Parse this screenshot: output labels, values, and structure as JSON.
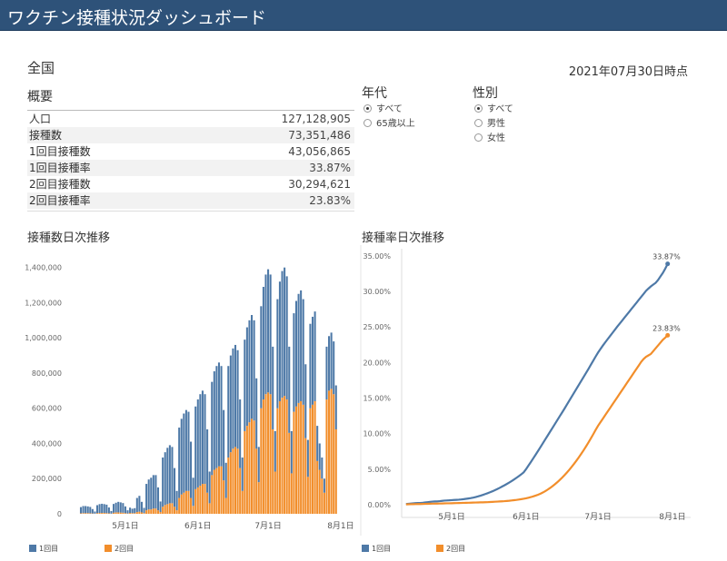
{
  "header": {
    "title": "ワクチン接種状況ダッシュボード"
  },
  "region": "全国",
  "as_of": "2021年07月30日時点",
  "summary": {
    "title": "概要",
    "rows": [
      [
        "人口",
        "127,128,905"
      ],
      [
        "接種数",
        "73,351,486"
      ],
      [
        "1回目接種数",
        "43,056,865"
      ],
      [
        "1回目接種率",
        "33.87%"
      ],
      [
        "2回目接種数",
        "30,294,621"
      ],
      [
        "2回目接種率",
        "23.83%"
      ]
    ]
  },
  "filters": [
    {
      "title": "年代",
      "options": [
        "すべて",
        "65歳以上"
      ]
    },
    {
      "title": "性別",
      "options": [
        "すべて",
        "男性",
        "女性"
      ]
    }
  ],
  "chart_data": [
    {
      "type": "bar",
      "title": "接種数日次推移",
      "stacked": true,
      "grid": false,
      "categories": [
        null,
        null,
        null,
        null,
        null,
        null,
        null,
        null,
        null,
        null,
        null,
        null,
        null,
        null,
        null,
        null,
        null,
        null,
        null,
        "5月1日",
        null,
        null,
        null,
        null,
        null,
        null,
        null,
        null,
        null,
        null,
        null,
        null,
        null,
        null,
        null,
        null,
        null,
        null,
        null,
        null,
        null,
        null,
        null,
        null,
        null,
        null,
        null,
        null,
        null,
        null,
        "6月1日",
        null,
        null,
        null,
        null,
        null,
        null,
        null,
        null,
        null,
        null,
        null,
        null,
        null,
        null,
        null,
        null,
        null,
        null,
        null,
        null,
        null,
        null,
        null,
        null,
        null,
        null,
        null,
        null,
        null,
        "7月1日",
        null,
        null,
        null,
        null,
        null,
        null,
        null,
        null,
        null,
        null,
        null,
        null,
        null,
        null,
        null,
        null,
        null,
        null,
        null,
        null,
        null,
        null,
        null,
        null,
        null,
        null,
        null,
        null,
        null,
        null,
        "8月1日"
      ],
      "series": [
        {
          "name": "1回目",
          "color": "#4e79a7",
          "values": [
            35000,
            40000,
            40000,
            38000,
            36000,
            25000,
            12000,
            45000,
            50000,
            52000,
            50000,
            48000,
            33000,
            15000,
            50000,
            55000,
            60000,
            58000,
            55000,
            38000,
            18000,
            30000,
            25000,
            28000,
            80000,
            90000,
            60000,
            30000,
            150000,
            170000,
            180000,
            190000,
            190000,
            130000,
            60000,
            280000,
            300000,
            320000,
            330000,
            320000,
            220000,
            110000,
            400000,
            430000,
            450000,
            460000,
            450000,
            320000,
            160000,
            470000,
            500000,
            520000,
            530000,
            510000,
            360000,
            180000,
            530000,
            560000,
            580000,
            590000,
            570000,
            400000,
            200000,
            520000,
            550000,
            570000,
            580000,
            560000,
            390000,
            190000,
            520000,
            560000,
            580000,
            590000,
            570000,
            400000,
            200000,
            580000,
            640000,
            680000,
            700000,
            680000,
            470000,
            230000,
            620000,
            680000,
            720000,
            730000,
            700000,
            490000,
            240000,
            560000,
            600000,
            620000,
            630000,
            600000,
            420000,
            210000,
            480000,
            500000,
            510000,
            200000,
            150000,
            120000,
            80000,
            300000,
            310000,
            320000,
            300000,
            250000,
            null,
            null
          ]
        },
        {
          "name": "2回目",
          "color": "#f28e2b",
          "values": [
            3000,
            4000,
            4000,
            4000,
            3000,
            2000,
            1000,
            4000,
            5000,
            5000,
            5000,
            4000,
            3000,
            1000,
            6000,
            8000,
            8000,
            7000,
            6000,
            4000,
            2000,
            5000,
            4000,
            4000,
            10000,
            12000,
            8000,
            4000,
            20000,
            25000,
            25000,
            30000,
            30000,
            20000,
            10000,
            40000,
            50000,
            55000,
            60000,
            60000,
            40000,
            20000,
            90000,
            110000,
            120000,
            130000,
            130000,
            90000,
            45000,
            140000,
            150000,
            160000,
            170000,
            170000,
            120000,
            60000,
            220000,
            250000,
            260000,
            270000,
            270000,
            190000,
            90000,
            320000,
            350000,
            370000,
            380000,
            370000,
            260000,
            130000,
            470000,
            500000,
            520000,
            540000,
            530000,
            370000,
            180000,
            600000,
            650000,
            680000,
            690000,
            680000,
            480000,
            240000,
            600000,
            640000,
            660000,
            670000,
            650000,
            460000,
            230000,
            580000,
            610000,
            630000,
            640000,
            620000,
            430000,
            210000,
            600000,
            620000,
            640000,
            300000,
            250000,
            200000,
            120000,
            650000,
            700000,
            710000,
            680000,
            480000,
            null,
            null
          ]
        }
      ],
      "ylim": [
        0,
        1450000
      ],
      "yticks": [
        0,
        {
          "value": 200000,
          "label": "200,000"
        },
        {
          "value": 400000,
          "label": "400,000"
        },
        {
          "value": 600000,
          "label": "600,000"
        },
        {
          "value": 800000,
          "label": "800,000"
        },
        {
          "value": 1000000,
          "label": "1,000,000"
        },
        {
          "value": 1200000,
          "label": "1,200,000"
        },
        {
          "value": 1400000,
          "label": "1,400,000"
        }
      ]
    },
    {
      "type": "line",
      "title": "接種率日次推移",
      "grid": false,
      "categories": [
        null,
        null,
        null,
        null,
        null,
        null,
        null,
        null,
        null,
        null,
        null,
        null,
        null,
        null,
        null,
        null,
        null,
        null,
        null,
        "5月1日",
        null,
        null,
        null,
        null,
        null,
        null,
        null,
        null,
        null,
        null,
        null,
        null,
        null,
        null,
        null,
        null,
        null,
        null,
        null,
        null,
        null,
        null,
        null,
        null,
        null,
        null,
        null,
        null,
        null,
        null,
        "6月1日",
        null,
        null,
        null,
        null,
        null,
        null,
        null,
        null,
        null,
        null,
        null,
        null,
        null,
        null,
        null,
        null,
        null,
        null,
        null,
        null,
        null,
        null,
        null,
        null,
        null,
        null,
        null,
        null,
        null,
        "7月1日",
        null,
        null,
        null,
        null,
        null,
        null,
        null,
        null,
        null,
        null,
        null,
        null,
        null,
        null,
        null,
        null,
        null,
        null,
        null,
        null,
        null,
        null,
        null,
        null,
        null,
        null,
        null,
        null,
        null,
        null,
        "8月1日"
      ],
      "series": [
        {
          "name": "1回目",
          "color": "#4e79a7",
          "values": [
            0.1,
            0.13,
            0.16,
            0.19,
            0.22,
            0.24,
            0.25,
            0.28,
            0.32,
            0.36,
            0.4,
            0.44,
            0.46,
            0.47,
            0.5,
            0.54,
            0.58,
            0.6,
            0.62,
            0.65,
            0.67,
            0.69,
            0.71,
            0.74,
            0.78,
            0.83,
            0.88,
            0.93,
            1.0,
            1.08,
            1.17,
            1.27,
            1.38,
            1.5,
            1.62,
            1.75,
            1.89,
            2.04,
            2.2,
            2.37,
            2.55,
            2.73,
            2.92,
            3.12,
            3.33,
            3.55,
            3.78,
            4.02,
            4.27,
            4.55,
            5.0,
            5.5,
            6.0,
            6.52,
            7.04,
            7.56,
            8.1,
            8.64,
            9.18,
            9.72,
            10.26,
            10.8,
            11.34,
            11.88,
            12.42,
            12.96,
            13.5,
            14.06,
            14.62,
            15.18,
            15.74,
            16.3,
            16.86,
            17.42,
            17.98,
            18.54,
            19.1,
            19.68,
            20.26,
            20.84,
            21.4,
            21.9,
            22.38,
            22.84,
            23.28,
            23.72,
            24.16,
            24.6,
            25.04,
            25.46,
            25.88,
            26.3,
            26.72,
            27.14,
            27.56,
            27.98,
            28.4,
            28.82,
            29.24,
            29.66,
            30.08,
            30.4,
            30.7,
            30.96,
            31.2,
            31.6,
            32.1,
            32.6,
            33.2,
            33.87,
            null,
            null
          ],
          "value_labels": [
            null,
            null,
            null,
            null,
            null,
            null,
            null,
            null,
            null,
            null,
            null,
            null,
            null,
            null,
            null,
            null,
            null,
            null,
            null,
            null,
            null,
            null,
            null,
            null,
            null,
            null,
            null,
            null,
            null,
            null,
            null,
            null,
            null,
            null,
            null,
            null,
            null,
            null,
            null,
            null,
            null,
            null,
            null,
            null,
            null,
            null,
            null,
            null,
            null,
            null,
            null,
            null,
            null,
            null,
            null,
            null,
            null,
            null,
            null,
            null,
            null,
            null,
            null,
            null,
            null,
            null,
            null,
            null,
            null,
            null,
            null,
            null,
            null,
            null,
            null,
            null,
            null,
            null,
            null,
            null,
            null,
            null,
            null,
            null,
            null,
            null,
            null,
            null,
            null,
            null,
            null,
            null,
            null,
            null,
            null,
            null,
            null,
            null,
            null,
            null,
            null,
            null,
            null,
            null,
            null,
            null,
            null,
            null,
            null,
            "33.87%",
            null,
            null
          ]
        },
        {
          "name": "2回目",
          "color": "#f28e2b",
          "values": [
            0.05,
            0.06,
            0.07,
            0.08,
            0.09,
            0.1,
            0.1,
            0.11,
            0.12,
            0.13,
            0.14,
            0.15,
            0.15,
            0.16,
            0.17,
            0.18,
            0.19,
            0.2,
            0.2,
            0.21,
            0.22,
            0.23,
            0.24,
            0.25,
            0.26,
            0.27,
            0.28,
            0.29,
            0.3,
            0.31,
            0.32,
            0.33,
            0.34,
            0.35,
            0.36,
            0.38,
            0.4,
            0.42,
            0.44,
            0.46,
            0.48,
            0.5,
            0.53,
            0.56,
            0.6,
            0.64,
            0.68,
            0.73,
            0.78,
            0.84,
            0.9,
            0.98,
            1.07,
            1.17,
            1.28,
            1.4,
            1.55,
            1.72,
            1.91,
            2.12,
            2.35,
            2.6,
            2.87,
            3.16,
            3.47,
            3.8,
            4.15,
            4.52,
            4.91,
            5.32,
            5.75,
            6.2,
            6.67,
            7.16,
            7.67,
            8.2,
            8.75,
            9.32,
            9.91,
            10.52,
            11.1,
            11.6,
            12.1,
            12.6,
            13.1,
            13.6,
            14.1,
            14.6,
            15.1,
            15.6,
            16.1,
            16.6,
            17.1,
            17.6,
            18.1,
            18.6,
            19.1,
            19.6,
            20.1,
            20.5,
            20.8,
            21.0,
            21.2,
            21.6,
            22.0,
            22.4,
            22.8,
            23.2,
            23.5,
            23.83,
            null,
            null
          ],
          "value_labels": [
            null,
            null,
            null,
            null,
            null,
            null,
            null,
            null,
            null,
            null,
            null,
            null,
            null,
            null,
            null,
            null,
            null,
            null,
            null,
            null,
            null,
            null,
            null,
            null,
            null,
            null,
            null,
            null,
            null,
            null,
            null,
            null,
            null,
            null,
            null,
            null,
            null,
            null,
            null,
            null,
            null,
            null,
            null,
            null,
            null,
            null,
            null,
            null,
            null,
            null,
            null,
            null,
            null,
            null,
            null,
            null,
            null,
            null,
            null,
            null,
            null,
            null,
            null,
            null,
            null,
            null,
            null,
            null,
            null,
            null,
            null,
            null,
            null,
            null,
            null,
            null,
            null,
            null,
            null,
            null,
            null,
            null,
            null,
            null,
            null,
            null,
            null,
            null,
            null,
            null,
            null,
            null,
            null,
            null,
            null,
            null,
            null,
            null,
            null,
            null,
            null,
            null,
            null,
            null,
            null,
            null,
            null,
            null,
            null,
            "23.83%",
            null,
            null
          ]
        }
      ],
      "ylim": [
        0,
        36
      ],
      "yticks": [
        {
          "value": 0,
          "label": "0.00%"
        },
        {
          "value": 5,
          "label": "5.00%"
        },
        {
          "value": 10,
          "label": "10.00%"
        },
        {
          "value": 15,
          "label": "15.00%"
        },
        {
          "value": 20,
          "label": "20.00%"
        },
        {
          "value": 25,
          "label": "25.00%"
        },
        {
          "value": 30,
          "label": "30.00%"
        },
        {
          "value": 35,
          "label": "35.00%"
        }
      ]
    }
  ]
}
